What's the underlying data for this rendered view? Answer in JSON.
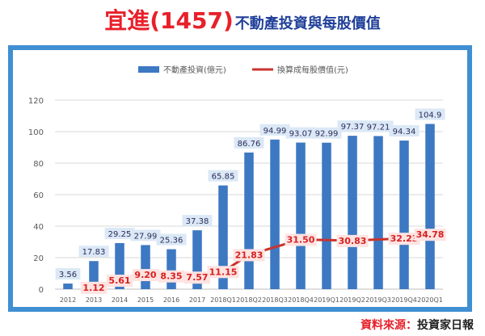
{
  "header": {
    "title_main": "宜進(1457)",
    "title_sub": "不動產投資與每股價值"
  },
  "source": {
    "label": "資料來源：",
    "value": "投資家日報"
  },
  "chart_data": {
    "type": "bar",
    "categories": [
      "2012",
      "2013",
      "2014",
      "2015",
      "2016",
      "2017",
      "2018Q1",
      "2018Q2",
      "2018Q3",
      "2018Q4",
      "2019Q1",
      "2019Q2",
      "2019Q3",
      "2019Q4",
      "2020Q1"
    ],
    "series": [
      {
        "name": "不動產投資(億元)",
        "type": "bar",
        "color": "#3d78c2",
        "values": [
          3.56,
          17.83,
          29.25,
          27.99,
          25.36,
          37.38,
          65.85,
          86.76,
          94.99,
          93.07,
          92.99,
          97.37,
          97.21,
          94.34,
          104.9
        ],
        "labels": [
          "3.56",
          "17.83",
          "29.25",
          "27.99",
          "25.36",
          "37.38",
          "65.85",
          "86.76",
          "94.99",
          "93.07",
          "92.99",
          "97.37",
          "97.21",
          "94.34",
          "104.9"
        ]
      },
      {
        "name": "換算成每股價值(元)",
        "type": "line",
        "color": "#c8342e",
        "points": [
          {
            "x": "2013",
            "y": 1.12,
            "label": "1.12"
          },
          {
            "x": "2014",
            "y": 5.61,
            "label": "5.61"
          },
          {
            "x": "2015",
            "y": 9.2,
            "label": "9.20"
          },
          {
            "x": "2016",
            "y": 8.35,
            "label": "8.35"
          },
          {
            "x": "2017",
            "y": 7.57,
            "label": "7.57"
          },
          {
            "x": "2018Q1",
            "y": 11.15,
            "label": "11.15"
          },
          {
            "x": "2018Q2",
            "y": 21.83,
            "label": "21.83"
          },
          {
            "x": "2018Q4",
            "y": 31.5,
            "label": "31.50"
          },
          {
            "x": "2019Q2",
            "y": 30.83,
            "label": "30.83"
          },
          {
            "x": "2019Q4",
            "y": 32.23,
            "label": "32.23"
          },
          {
            "x": "2020Q1",
            "y": 34.78,
            "label": "34.78"
          }
        ]
      }
    ],
    "ylim": [
      0,
      120
    ],
    "yticks": [
      0,
      20,
      40,
      60,
      80,
      100,
      120
    ],
    "grid": true,
    "legend": "top-center"
  }
}
